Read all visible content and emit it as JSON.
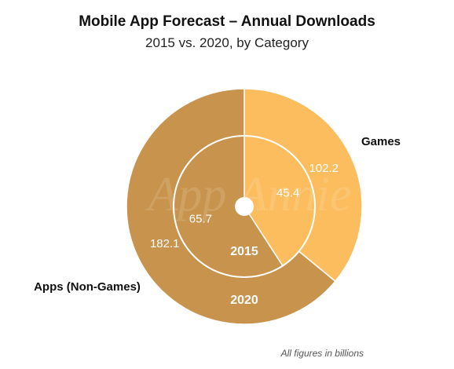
{
  "chart_data": {
    "type": "pie",
    "title": "Mobile App Forecast – Annual Downloads",
    "subtitle": "2015 vs. 2020, by Category",
    "footnote": "All figures in billions",
    "watermark": "App Annie",
    "colors": {
      "games": "#fbbd5e",
      "apps": "#c8934c",
      "ring_line": "#ffffff"
    },
    "categories": [
      "Games",
      "Apps (Non-Games)"
    ],
    "rings": [
      {
        "name": "2015",
        "values": [
          45.4,
          65.7
        ]
      },
      {
        "name": "2020",
        "values": [
          102.2,
          182.1
        ]
      }
    ]
  }
}
